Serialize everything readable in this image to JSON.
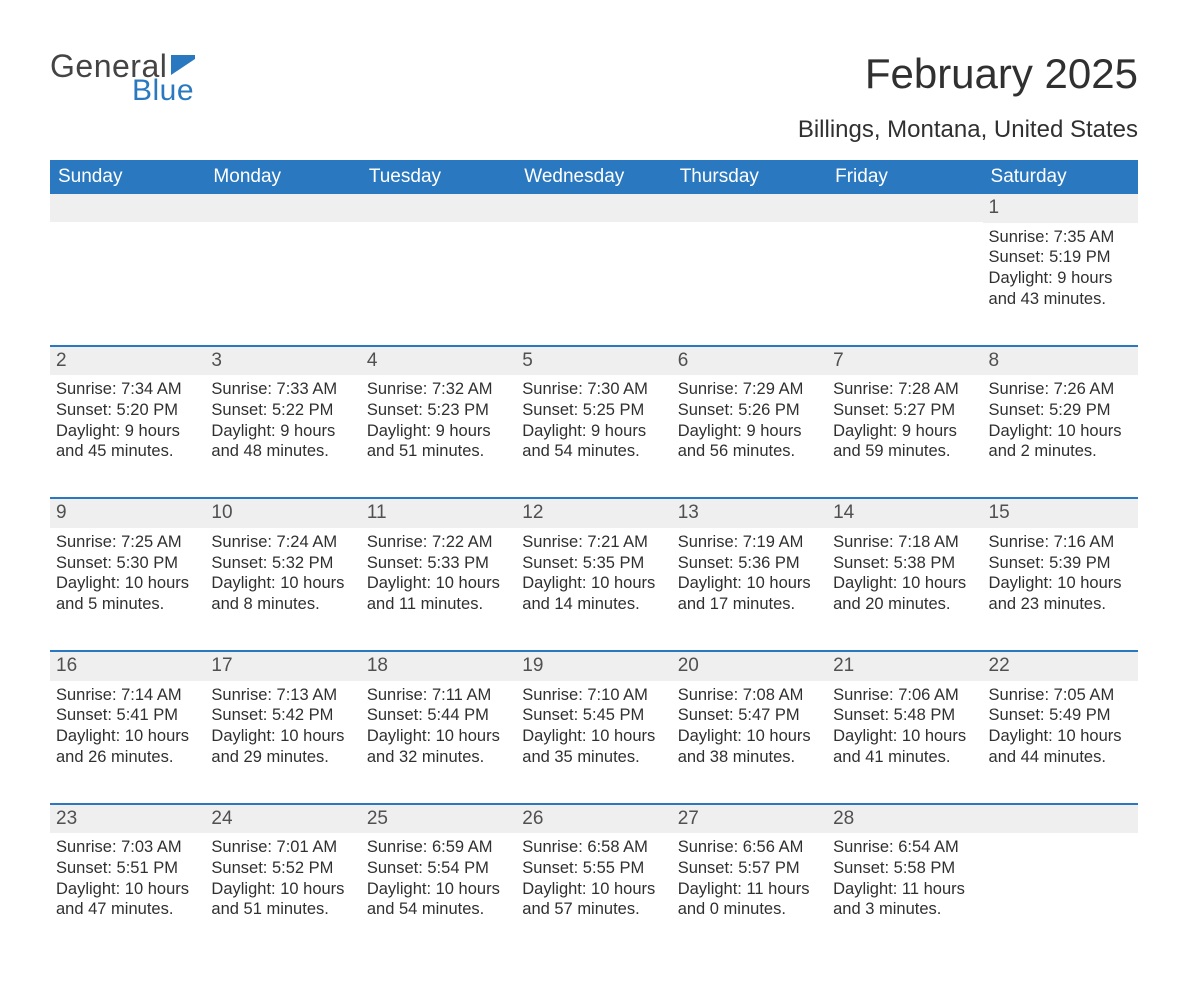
{
  "brand": {
    "word1": "General",
    "word2": "Blue",
    "word1_color": "#444444",
    "word2_color": "#2a79c0",
    "flag_color": "#2a79c0"
  },
  "title": "February 2025",
  "location": "Billings, Montana, United States",
  "colors": {
    "header_bg": "#2a79c0",
    "header_text": "#ffffff",
    "daynum_bg": "#efefef",
    "row_divider": "#2a79c0",
    "text": "#303030",
    "background": "#ffffff"
  },
  "typography": {
    "title_fontsize": 42,
    "location_fontsize": 24,
    "weekday_fontsize": 19,
    "daynum_fontsize": 19,
    "body_fontsize": 16.5,
    "font_family": "Arial"
  },
  "weekdays": [
    "Sunday",
    "Monday",
    "Tuesday",
    "Wednesday",
    "Thursday",
    "Friday",
    "Saturday"
  ],
  "weeks": [
    [
      {
        "day": "",
        "sunrise": "",
        "sunset": "",
        "daylight": ""
      },
      {
        "day": "",
        "sunrise": "",
        "sunset": "",
        "daylight": ""
      },
      {
        "day": "",
        "sunrise": "",
        "sunset": "",
        "daylight": ""
      },
      {
        "day": "",
        "sunrise": "",
        "sunset": "",
        "daylight": ""
      },
      {
        "day": "",
        "sunrise": "",
        "sunset": "",
        "daylight": ""
      },
      {
        "day": "",
        "sunrise": "",
        "sunset": "",
        "daylight": ""
      },
      {
        "day": "1",
        "sunrise": "Sunrise: 7:35 AM",
        "sunset": "Sunset: 5:19 PM",
        "daylight": "Daylight: 9 hours and 43 minutes."
      }
    ],
    [
      {
        "day": "2",
        "sunrise": "Sunrise: 7:34 AM",
        "sunset": "Sunset: 5:20 PM",
        "daylight": "Daylight: 9 hours and 45 minutes."
      },
      {
        "day": "3",
        "sunrise": "Sunrise: 7:33 AM",
        "sunset": "Sunset: 5:22 PM",
        "daylight": "Daylight: 9 hours and 48 minutes."
      },
      {
        "day": "4",
        "sunrise": "Sunrise: 7:32 AM",
        "sunset": "Sunset: 5:23 PM",
        "daylight": "Daylight: 9 hours and 51 minutes."
      },
      {
        "day": "5",
        "sunrise": "Sunrise: 7:30 AM",
        "sunset": "Sunset: 5:25 PM",
        "daylight": "Daylight: 9 hours and 54 minutes."
      },
      {
        "day": "6",
        "sunrise": "Sunrise: 7:29 AM",
        "sunset": "Sunset: 5:26 PM",
        "daylight": "Daylight: 9 hours and 56 minutes."
      },
      {
        "day": "7",
        "sunrise": "Sunrise: 7:28 AM",
        "sunset": "Sunset: 5:27 PM",
        "daylight": "Daylight: 9 hours and 59 minutes."
      },
      {
        "day": "8",
        "sunrise": "Sunrise: 7:26 AM",
        "sunset": "Sunset: 5:29 PM",
        "daylight": "Daylight: 10 hours and 2 minutes."
      }
    ],
    [
      {
        "day": "9",
        "sunrise": "Sunrise: 7:25 AM",
        "sunset": "Sunset: 5:30 PM",
        "daylight": "Daylight: 10 hours and 5 minutes."
      },
      {
        "day": "10",
        "sunrise": "Sunrise: 7:24 AM",
        "sunset": "Sunset: 5:32 PM",
        "daylight": "Daylight: 10 hours and 8 minutes."
      },
      {
        "day": "11",
        "sunrise": "Sunrise: 7:22 AM",
        "sunset": "Sunset: 5:33 PM",
        "daylight": "Daylight: 10 hours and 11 minutes."
      },
      {
        "day": "12",
        "sunrise": "Sunrise: 7:21 AM",
        "sunset": "Sunset: 5:35 PM",
        "daylight": "Daylight: 10 hours and 14 minutes."
      },
      {
        "day": "13",
        "sunrise": "Sunrise: 7:19 AM",
        "sunset": "Sunset: 5:36 PM",
        "daylight": "Daylight: 10 hours and 17 minutes."
      },
      {
        "day": "14",
        "sunrise": "Sunrise: 7:18 AM",
        "sunset": "Sunset: 5:38 PM",
        "daylight": "Daylight: 10 hours and 20 minutes."
      },
      {
        "day": "15",
        "sunrise": "Sunrise: 7:16 AM",
        "sunset": "Sunset: 5:39 PM",
        "daylight": "Daylight: 10 hours and 23 minutes."
      }
    ],
    [
      {
        "day": "16",
        "sunrise": "Sunrise: 7:14 AM",
        "sunset": "Sunset: 5:41 PM",
        "daylight": "Daylight: 10 hours and 26 minutes."
      },
      {
        "day": "17",
        "sunrise": "Sunrise: 7:13 AM",
        "sunset": "Sunset: 5:42 PM",
        "daylight": "Daylight: 10 hours and 29 minutes."
      },
      {
        "day": "18",
        "sunrise": "Sunrise: 7:11 AM",
        "sunset": "Sunset: 5:44 PM",
        "daylight": "Daylight: 10 hours and 32 minutes."
      },
      {
        "day": "19",
        "sunrise": "Sunrise: 7:10 AM",
        "sunset": "Sunset: 5:45 PM",
        "daylight": "Daylight: 10 hours and 35 minutes."
      },
      {
        "day": "20",
        "sunrise": "Sunrise: 7:08 AM",
        "sunset": "Sunset: 5:47 PM",
        "daylight": "Daylight: 10 hours and 38 minutes."
      },
      {
        "day": "21",
        "sunrise": "Sunrise: 7:06 AM",
        "sunset": "Sunset: 5:48 PM",
        "daylight": "Daylight: 10 hours and 41 minutes."
      },
      {
        "day": "22",
        "sunrise": "Sunrise: 7:05 AM",
        "sunset": "Sunset: 5:49 PM",
        "daylight": "Daylight: 10 hours and 44 minutes."
      }
    ],
    [
      {
        "day": "23",
        "sunrise": "Sunrise: 7:03 AM",
        "sunset": "Sunset: 5:51 PM",
        "daylight": "Daylight: 10 hours and 47 minutes."
      },
      {
        "day": "24",
        "sunrise": "Sunrise: 7:01 AM",
        "sunset": "Sunset: 5:52 PM",
        "daylight": "Daylight: 10 hours and 51 minutes."
      },
      {
        "day": "25",
        "sunrise": "Sunrise: 6:59 AM",
        "sunset": "Sunset: 5:54 PM",
        "daylight": "Daylight: 10 hours and 54 minutes."
      },
      {
        "day": "26",
        "sunrise": "Sunrise: 6:58 AM",
        "sunset": "Sunset: 5:55 PM",
        "daylight": "Daylight: 10 hours and 57 minutes."
      },
      {
        "day": "27",
        "sunrise": "Sunrise: 6:56 AM",
        "sunset": "Sunset: 5:57 PM",
        "daylight": "Daylight: 11 hours and 0 minutes."
      },
      {
        "day": "28",
        "sunrise": "Sunrise: 6:54 AM",
        "sunset": "Sunset: 5:58 PM",
        "daylight": "Daylight: 11 hours and 3 minutes."
      },
      {
        "day": "",
        "sunrise": "",
        "sunset": "",
        "daylight": ""
      }
    ]
  ]
}
